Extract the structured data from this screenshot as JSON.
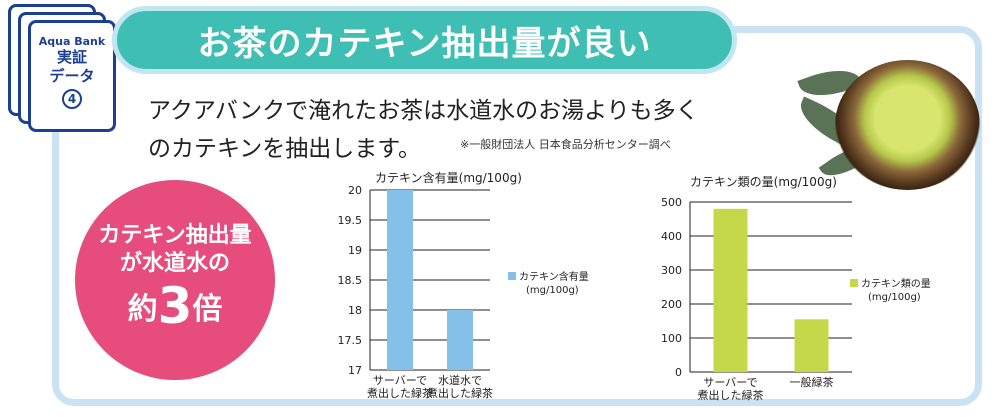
{
  "title": "お茶のカテキン抽出量が良い",
  "badge": {
    "brand": "Aqua Bank",
    "line1": "実証",
    "line2": "データ",
    "number": "4"
  },
  "lead": {
    "line1": "アクアバンクで淹れたお茶は水道水のお湯よりも多く",
    "line2": "のカテキンを抽出します。"
  },
  "source": "※一般財団法人 日本食品分析センター調べ",
  "highlight": {
    "line1": "カテキン抽出量",
    "line2": "が水道水の",
    "prefix": "約",
    "number": "3",
    "suffix": "倍"
  },
  "colors": {
    "chart1": "#85c0e8",
    "chart2": "#c5d84a",
    "accent": "#e64d7c",
    "banner": "#3fbfb3"
  },
  "chart_data": [
    {
      "type": "bar",
      "title": "カテキン含有量(mg/100g)",
      "categories": [
        [
          "サーバーで",
          "煮出した緑茶"
        ],
        [
          "水道水で",
          "煮出した緑茶"
        ]
      ],
      "values": [
        20,
        18
      ],
      "ylim": [
        17,
        20
      ],
      "yticks": [
        "17",
        "17.5",
        "18",
        "18.5",
        "19",
        "19.5",
        "20"
      ],
      "legend": {
        "line1": "カテキン含有量",
        "line2": "(mg/100g)"
      }
    },
    {
      "type": "bar",
      "title": "カテキン類の量(mg/100g)",
      "categories": [
        [
          "サーバーで",
          "煮出した緑茶"
        ],
        [
          "一般緑茶"
        ]
      ],
      "values": [
        480,
        155
      ],
      "ylim": [
        0,
        500
      ],
      "yticks": [
        "0",
        "100",
        "200",
        "300",
        "400",
        "500"
      ],
      "legend": {
        "line1": "カテキン類の量",
        "line2": "(mg/100g)"
      }
    }
  ]
}
